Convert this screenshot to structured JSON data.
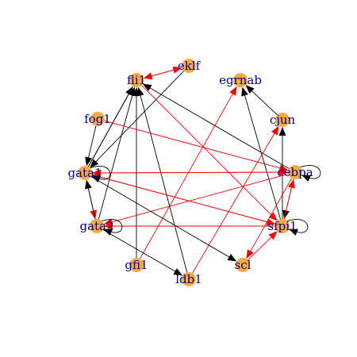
{
  "graph": {
    "nodes": [
      {
        "id": "fli1",
        "label": "fli1"
      },
      {
        "id": "eklf",
        "label": "eklf"
      },
      {
        "id": "egrnab",
        "label": "egrnab"
      },
      {
        "id": "cjun",
        "label": "cjun"
      },
      {
        "id": "fog1",
        "label": "fog1"
      },
      {
        "id": "cebpa",
        "label": "cebpa"
      },
      {
        "id": "gata1",
        "label": "gata1"
      },
      {
        "id": "gata2",
        "label": "gata2"
      },
      {
        "id": "sfpi1",
        "label": "sfpi1"
      },
      {
        "id": "gfi1",
        "label": "gfi1"
      },
      {
        "id": "ldb1",
        "label": "ldb1"
      },
      {
        "id": "scl",
        "label": "scl"
      }
    ],
    "colors": {
      "node_fill": "#f5ab41",
      "label": "#00008b",
      "activation_edge": "#000000",
      "inhibition_edge": "#ff0000"
    },
    "edges": [
      {
        "from": "eklf",
        "to": "fli1",
        "type": "red"
      },
      {
        "from": "fli1",
        "to": "eklf",
        "type": "red"
      },
      {
        "from": "gata1",
        "to": "fli1",
        "type": "black"
      },
      {
        "from": "gata1",
        "to": "fli1",
        "type": "black"
      },
      {
        "from": "gata2",
        "to": "fli1",
        "type": "black"
      },
      {
        "from": "gfi1",
        "to": "fli1",
        "type": "black"
      },
      {
        "from": "ldb1",
        "to": "fli1",
        "type": "black"
      },
      {
        "from": "cebpa",
        "to": "fli1",
        "type": "black"
      },
      {
        "from": "fli1",
        "to": "sfpi1",
        "type": "red"
      },
      {
        "from": "eklf",
        "to": "gata1",
        "type": "black"
      },
      {
        "from": "fog1",
        "to": "gata1",
        "type": "black"
      },
      {
        "from": "fog1",
        "to": "cebpa",
        "type": "red"
      },
      {
        "from": "cjun",
        "to": "egrnab",
        "type": "black"
      },
      {
        "from": "sfpi1",
        "to": "egrnab",
        "type": "black"
      },
      {
        "from": "gfi1",
        "to": "egrnab",
        "type": "red"
      },
      {
        "from": "sfpi1",
        "to": "cjun",
        "type": "black"
      },
      {
        "from": "ldb1",
        "to": "cjun",
        "type": "red"
      },
      {
        "from": "cebpa",
        "to": "gata1",
        "type": "red"
      },
      {
        "from": "sfpi1",
        "to": "gata1",
        "type": "red"
      },
      {
        "from": "gata1",
        "to": "sfpi1",
        "type": "red"
      },
      {
        "from": "gata1",
        "to": "cebpa",
        "type": "red"
      },
      {
        "from": "gata1",
        "to": "gata2",
        "type": "red"
      },
      {
        "from": "gata2",
        "to": "gata1",
        "type": "black"
      },
      {
        "from": "cebpa",
        "to": "gata2",
        "type": "red"
      },
      {
        "from": "sfpi1",
        "to": "gata2",
        "type": "red"
      },
      {
        "from": "gata2",
        "to": "ldb1",
        "type": "black"
      },
      {
        "from": "gata1",
        "to": "scl",
        "type": "black"
      },
      {
        "from": "cebpa",
        "to": "sfpi1",
        "type": "black"
      },
      {
        "from": "sfpi1",
        "to": "cebpa",
        "type": "red"
      },
      {
        "from": "cebpa",
        "to": "scl",
        "type": "red"
      },
      {
        "from": "scl",
        "to": "sfpi1",
        "type": "red"
      }
    ],
    "self_loops": [
      {
        "node": "gata1",
        "type": "black"
      },
      {
        "node": "gata2",
        "type": "black"
      },
      {
        "node": "cebpa",
        "type": "black"
      },
      {
        "node": "sfpi1",
        "type": "black"
      }
    ]
  }
}
